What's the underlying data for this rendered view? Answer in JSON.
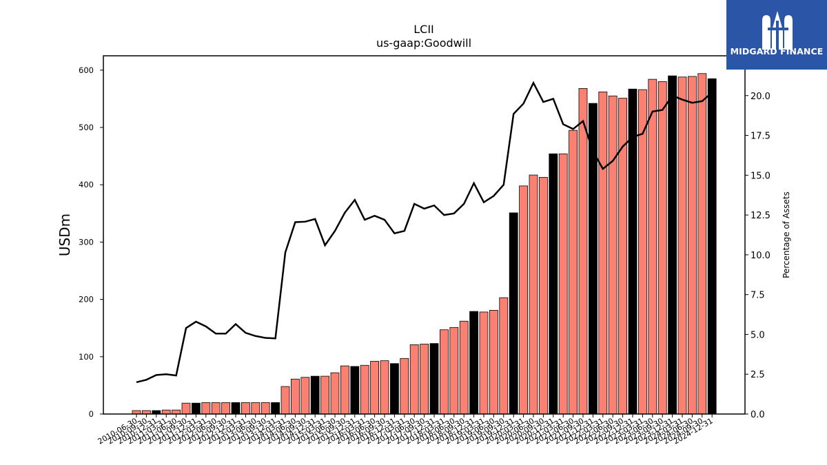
{
  "brand": {
    "name": "MIDGARD FINANCE",
    "bg_color": "#2b56a8",
    "icon": "midgard-m-logo-icon"
  },
  "chart_data": {
    "type": "bar",
    "title": "LCII",
    "subtitle": "us-gaap:Goodwill",
    "ylabel": "USDm",
    "y2label": "Percentage of Assets",
    "ylim": [
      0,
      625
    ],
    "y2lim": [
      0,
      22.5
    ],
    "yticks": [
      0,
      100,
      200,
      300,
      400,
      500,
      600
    ],
    "y2ticks": [
      "0.0",
      "2.5",
      "5.0",
      "7.5",
      "10.0",
      "12.5",
      "15.0",
      "17.5",
      "20.0"
    ],
    "colors": {
      "bar_default": "#fa8072",
      "bar_year_end": "#000000",
      "line": "#000000"
    },
    "categories": [
      "2010-06-30",
      "2010-09-30",
      "2010-12-31",
      "2011-03-31",
      "2011-06-30",
      "2011-09-30",
      "2011-12-31",
      "2012-03-31",
      "2012-06-30",
      "2012-09-30",
      "2012-12-31",
      "2013-03-31",
      "2013-06-30",
      "2013-09-30",
      "2013-12-31",
      "2014-03-31",
      "2014-06-30",
      "2014-09-30",
      "2014-12-31",
      "2015-03-31",
      "2015-06-30",
      "2015-09-30",
      "2015-12-31",
      "2016-03-31",
      "2016-06-30",
      "2016-09-30",
      "2016-12-31",
      "2017-03-31",
      "2017-06-30",
      "2017-09-30",
      "2017-12-31",
      "2018-03-31",
      "2018-06-30",
      "2018-09-30",
      "2018-12-31",
      "2019-03-31",
      "2019-06-30",
      "2019-09-30",
      "2019-12-31",
      "2020-03-31",
      "2020-06-30",
      "2020-09-30",
      "2020-12-31",
      "2021-03-31",
      "2021-06-30",
      "2021-09-30",
      "2021-12-31",
      "2022-03-31",
      "2022-06-30",
      "2022-09-30",
      "2022-12-31",
      "2023-03-31",
      "2023-06-30",
      "2023-09-30",
      "2023-12-31",
      "2024-03-31",
      "2024-06-30",
      "2024-09-30",
      "2024-12-31"
    ],
    "series": [
      {
        "kind": "bar",
        "axis": "left",
        "values": [
          6,
          6,
          6,
          7,
          7,
          19,
          19,
          20,
          20,
          20,
          20,
          20,
          20,
          20,
          20,
          48,
          61,
          64,
          66,
          66,
          72,
          84,
          83,
          85,
          92,
          93,
          88,
          97,
          121,
          122,
          123,
          147,
          151,
          162,
          179,
          178,
          181,
          203,
          351,
          398,
          417,
          413,
          454,
          454,
          495,
          568,
          542,
          562,
          555,
          551,
          567,
          566,
          584,
          580,
          590,
          588,
          589,
          594,
          585
        ]
      },
      {
        "kind": "line",
        "axis": "right",
        "values": [
          2.0,
          2.15,
          2.45,
          2.5,
          2.42,
          5.4,
          5.8,
          5.5,
          5.05,
          5.05,
          5.65,
          5.1,
          4.9,
          4.78,
          4.75,
          10.15,
          12.05,
          12.08,
          12.25,
          10.6,
          11.5,
          12.65,
          13.45,
          12.2,
          12.45,
          12.2,
          11.35,
          11.5,
          13.2,
          12.9,
          13.1,
          12.5,
          12.6,
          13.2,
          14.5,
          13.3,
          13.7,
          14.4,
          18.85,
          19.5,
          20.8,
          19.6,
          19.8,
          18.2,
          17.9,
          18.4,
          16.5,
          15.4,
          15.9,
          16.8,
          17.4,
          17.6,
          19.0,
          19.1,
          20.0,
          19.75,
          19.55,
          19.65,
          20.2
        ]
      }
    ]
  }
}
